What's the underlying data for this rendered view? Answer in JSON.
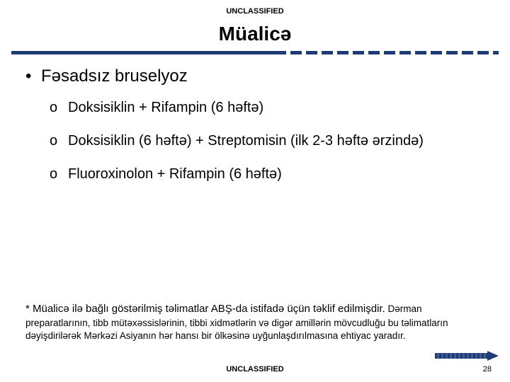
{
  "classification_top": "UNCLASSIFIED",
  "classification_bottom": "UNCLASSIFIED",
  "title": "Müalicə",
  "accent_color": "#1f3b73",
  "heading": "Fəsadsız bruselyoz",
  "items": [
    "Doksisiklin + Rifampin (6 həftə)",
    "Doksisiklin (6 həftə) + Streptomisin (ilk 2-3 həftə ərzində)",
    "Fluoroxinolon + Rifampin (6 həftə)"
  ],
  "footnote_lead": "* Müalicə ilə bağlı göstərilmiş təlimatlar ABŞ-da istifadə üçün təklif edilmişdir.",
  "footnote_rest": "Dərman preparatlarının, tibb mütəxəssislərinin, tibbi xidmətlərin və digər amillərin mövcudluğu bu təlimatların dəyişdirilərək Mərkəzi Asiyanın hər hansı bir ölkəsinə uyğunlaşdırılmasına ehtiyac yaradır.",
  "page_number": "28"
}
